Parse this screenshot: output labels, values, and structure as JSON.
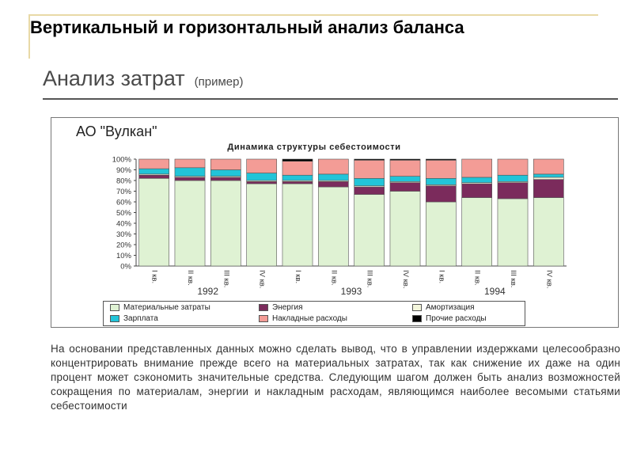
{
  "slide_title": "Вертикальный и горизонтальный анализ баланса",
  "subtitle": {
    "main": "Анализ затрат",
    "note": "(пример)"
  },
  "company": "АО \"Вулкан\"",
  "chart_data": {
    "type": "bar",
    "stacked": true,
    "title": "Динамика структуры себестоимости",
    "categories": [
      "I кв.",
      "II кв.",
      "III кв.",
      "IV кв.",
      "I кв.",
      "II кв.",
      "III кв.",
      "IV кв.",
      "I кв.",
      "II кв.",
      "III кв.",
      "IV кв."
    ],
    "years": [
      "1992",
      "1993",
      "1994"
    ],
    "y_ticks": [
      "0%",
      "10%",
      "20%",
      "30%",
      "40%",
      "50%",
      "60%",
      "70%",
      "80%",
      "90%",
      "100%"
    ],
    "ylim": [
      0,
      100
    ],
    "grid": false,
    "series": [
      {
        "name": "Материальные затраты",
        "color": "#dff2d3",
        "values": [
          82,
          80,
          80,
          77,
          77,
          74,
          67,
          70,
          60,
          64,
          63,
          64
        ]
      },
      {
        "name": "Энергия",
        "color": "#7b2b5c",
        "values": [
          3,
          3,
          3,
          2,
          2,
          5,
          7,
          8,
          15,
          13,
          15,
          17
        ]
      },
      {
        "name": "Амортизация",
        "color": "#f4f6dc",
        "values": [
          1,
          1,
          1,
          1,
          1,
          1,
          1,
          1,
          1,
          1,
          1,
          2
        ]
      },
      {
        "name": "Зарплата",
        "color": "#22c4d8",
        "values": [
          5,
          8,
          6,
          7,
          5,
          6,
          7,
          5,
          6,
          5,
          6,
          3
        ]
      },
      {
        "name": "Накладные расходы",
        "color": "#f39c96",
        "values": [
          9,
          8,
          10,
          13,
          13,
          14,
          17,
          15,
          17,
          17,
          15,
          14
        ]
      },
      {
        "name": "Прочие расходы",
        "color": "#000000",
        "values": [
          0,
          0,
          0,
          0,
          2,
          0,
          1,
          1,
          1,
          0,
          0,
          0
        ]
      }
    ]
  },
  "paragraph": "На основании представленных данных можно сделать вывод, что в управлении издержками целесообразно концентрировать внимание прежде всего на материальных затратах, так как снижение их даже на один процент может сэкономить значительные средства. Следующим шагом должен быть анализ возможностей сокращения по материалам, энергии и накладным расходам, являющимся наиболее весомыми статьями себестоимости"
}
